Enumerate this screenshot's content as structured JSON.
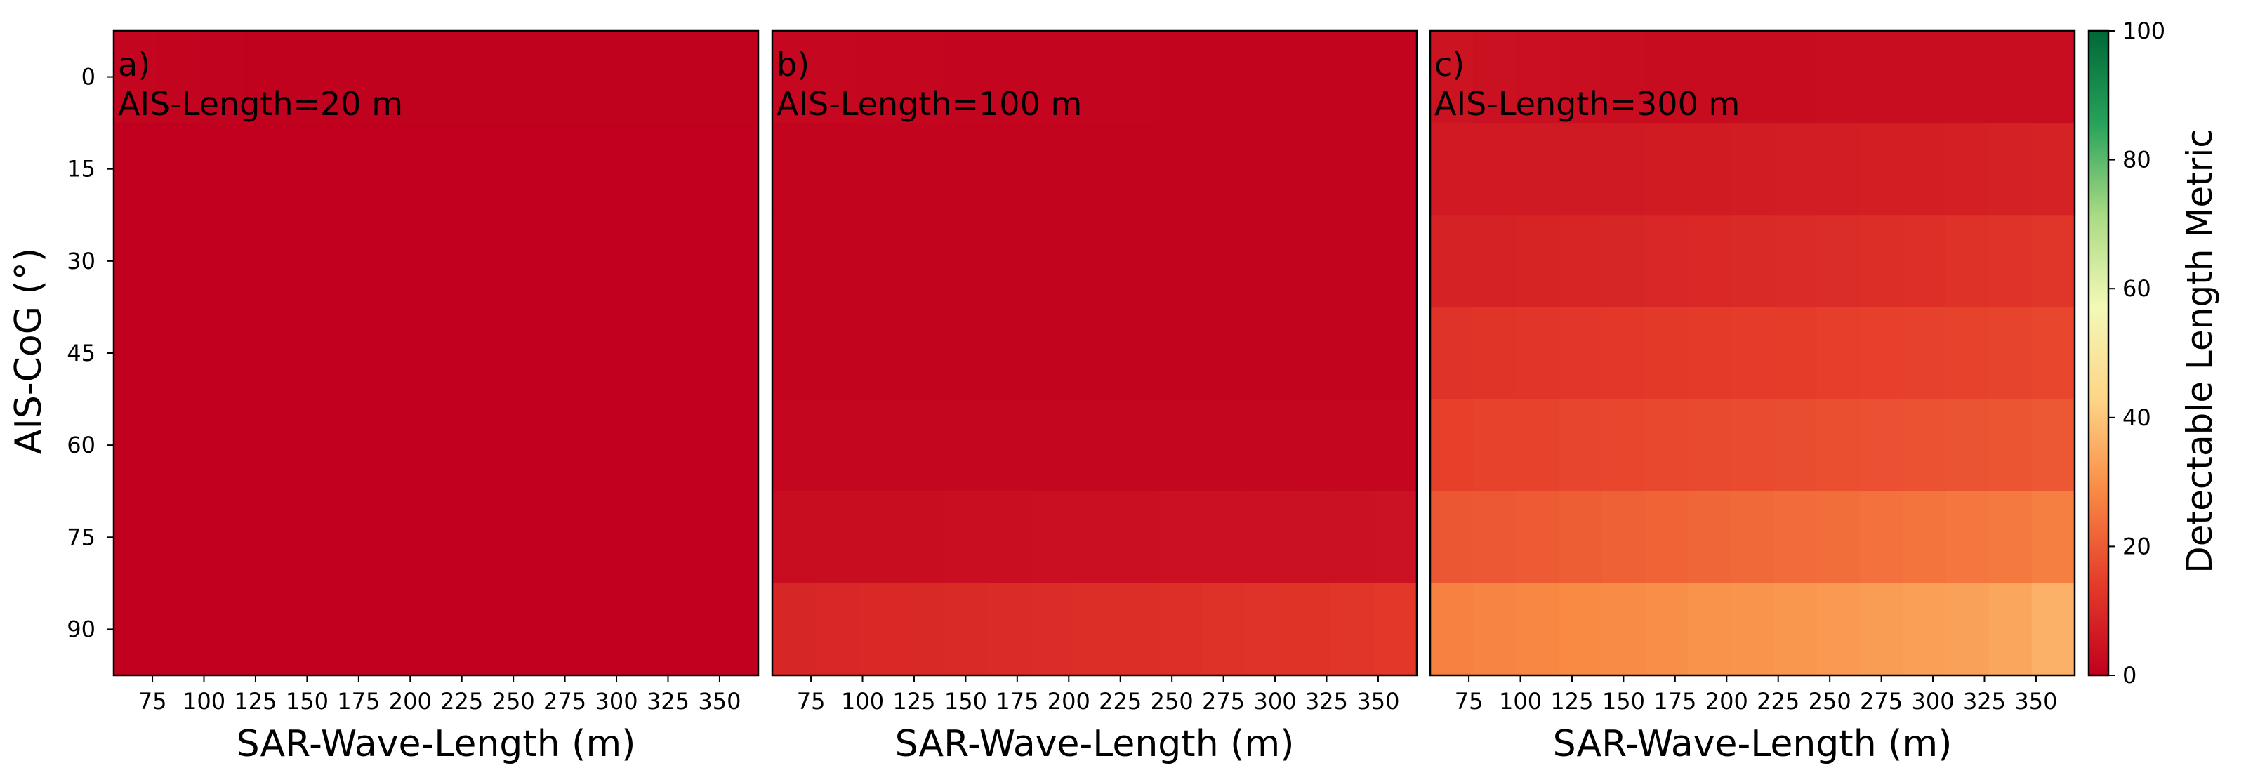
{
  "chart_data": {
    "type": "heatmap",
    "x": [
      66.67,
      87.5,
      108.33,
      129.17,
      150,
      170.83,
      191.67,
      212.5,
      233.33,
      254.17,
      275,
      295.83,
      316.67,
      337.5,
      358.33
    ],
    "y": [
      0,
      15,
      30,
      45,
      60,
      75,
      90
    ],
    "xlabel": "SAR-Wave-Length (m)",
    "ylabel": "AIS-CoG (°)",
    "xticks": [
      "75",
      "100",
      "125",
      "150",
      "175",
      "200",
      "225",
      "250",
      "275",
      "300",
      "325",
      "350"
    ],
    "yticks": [
      "0",
      "15",
      "30",
      "45",
      "60",
      "75",
      "90"
    ],
    "xlim": [
      56.25,
      368.75
    ],
    "ylim": [
      97.5,
      -7.5
    ],
    "colorbar": {
      "label": "Detectable Length Metric",
      "range": [
        0,
        100
      ],
      "ticks": [
        "0",
        "20",
        "40",
        "60",
        "80",
        "100"
      ],
      "colormap": "RdYlGn",
      "stops": [
        "#c0001e",
        "#e53c2a",
        "#f88a44",
        "#fed587",
        "#f3f9b7",
        "#a9da84",
        "#27a25a",
        "#006837"
      ]
    },
    "panels": [
      {
        "label": "a)",
        "annotation": "AIS-Length=20 m",
        "values": [
          [
            1.2,
            1.0,
            0.6,
            0.5,
            0.5,
            0.5,
            0.5,
            0.5,
            0.5,
            0.5,
            0.5,
            0.5,
            0.5,
            0.5,
            0.5
          ],
          [
            0.1,
            0.1,
            0.1,
            0.1,
            0.1,
            0.1,
            0.1,
            0.1,
            0.1,
            0.1,
            0.1,
            0.1,
            0.1,
            0.1,
            0.1
          ],
          [
            0.1,
            0.1,
            0.1,
            0.1,
            0.1,
            0.1,
            0.1,
            0.1,
            0.1,
            0.1,
            0.1,
            0.1,
            0.1,
            0.1,
            0.1
          ],
          [
            0.1,
            0.1,
            0.1,
            0.1,
            0.1,
            0.1,
            0.1,
            0.1,
            0.1,
            0.1,
            0.1,
            0.1,
            0.1,
            0.1,
            0.1
          ],
          [
            0.1,
            0.1,
            0.1,
            0.1,
            0.1,
            0.1,
            0.1,
            0.1,
            0.1,
            0.1,
            0.1,
            0.1,
            0.1,
            0.1,
            0.1
          ],
          [
            0.1,
            0.1,
            0.1,
            0.1,
            0.1,
            0.1,
            0.1,
            0.1,
            0.1,
            0.1,
            0.1,
            0.1,
            0.1,
            0.1,
            0.1
          ],
          [
            0.1,
            0.1,
            0.1,
            0.1,
            0.1,
            0.1,
            0.1,
            0.1,
            0.1,
            0.1,
            0.1,
            0.1,
            0.1,
            0.1,
            0.1
          ]
        ]
      },
      {
        "label": "b)",
        "annotation": "AIS-Length=100 m",
        "values": [
          [
            2.0,
            1.8,
            1.5,
            1.4,
            1.3,
            1.2,
            1.2,
            1.1,
            1.1,
            1.0,
            1.0,
            1.0,
            1.0,
            0.9,
            0.9
          ],
          [
            1.0,
            1.0,
            1.0,
            1.0,
            1.0,
            1.0,
            1.0,
            1.0,
            1.0,
            1.0,
            1.0,
            1.0,
            1.0,
            1.0,
            1.0
          ],
          [
            1.0,
            1.0,
            1.0,
            1.0,
            1.0,
            1.0,
            1.0,
            1.0,
            1.0,
            1.0,
            1.0,
            1.0,
            1.0,
            1.0,
            1.0
          ],
          [
            1.0,
            1.0,
            1.0,
            1.0,
            1.0,
            1.0,
            1.0,
            1.0,
            1.0,
            1.0,
            1.0,
            1.0,
            1.0,
            1.0,
            1.0
          ],
          [
            1.5,
            1.5,
            1.5,
            1.5,
            1.5,
            1.5,
            1.5,
            1.5,
            1.5,
            1.5,
            1.5,
            1.5,
            1.5,
            1.5,
            1.5
          ],
          [
            3.0,
            3.0,
            3.1,
            3.2,
            3.3,
            3.4,
            3.5,
            3.6,
            3.6,
            3.7,
            3.8,
            3.9,
            4.0,
            4.0,
            4.2
          ],
          [
            9.0,
            9.2,
            9.5,
            9.8,
            10.0,
            10.2,
            10.5,
            10.8,
            11.0,
            11.3,
            11.6,
            11.9,
            12.2,
            12.5,
            13.0
          ]
        ]
      },
      {
        "label": "c)",
        "annotation": "AIS-Length=300 m",
        "values": [
          [
            4.5,
            4.0,
            3.5,
            3.3,
            3.0,
            2.9,
            2.8,
            2.8,
            2.9,
            3.0,
            3.0,
            3.0,
            3.0,
            3.0,
            3.0
          ],
          [
            6.0,
            6.0,
            6.1,
            6.2,
            6.3,
            6.4,
            6.5,
            6.6,
            6.8,
            7.0,
            7.2,
            7.4,
            7.6,
            7.8,
            8.0
          ],
          [
            8.0,
            8.2,
            8.5,
            8.8,
            9.0,
            9.3,
            9.6,
            10.0,
            10.3,
            10.6,
            11.0,
            11.3,
            11.6,
            12.0,
            12.5
          ],
          [
            12.0,
            12.3,
            12.6,
            12.9,
            13.2,
            13.5,
            13.8,
            14.0,
            14.3,
            14.6,
            14.9,
            15.2,
            15.5,
            15.8,
            16.2
          ],
          [
            15.0,
            15.3,
            15.6,
            15.9,
            16.2,
            16.5,
            16.8,
            17.1,
            17.4,
            17.7,
            18.0,
            18.3,
            18.6,
            18.9,
            19.5
          ],
          [
            19.0,
            19.5,
            20.0,
            20.5,
            21.0,
            21.5,
            22.0,
            22.5,
            23.0,
            23.5,
            24.0,
            24.5,
            25.0,
            25.5,
            26.5
          ],
          [
            27.0,
            27.5,
            28.0,
            28.5,
            29.0,
            29.5,
            30.0,
            30.5,
            31.0,
            31.5,
            32.0,
            32.5,
            33.0,
            34.0,
            36.0
          ]
        ]
      }
    ]
  }
}
